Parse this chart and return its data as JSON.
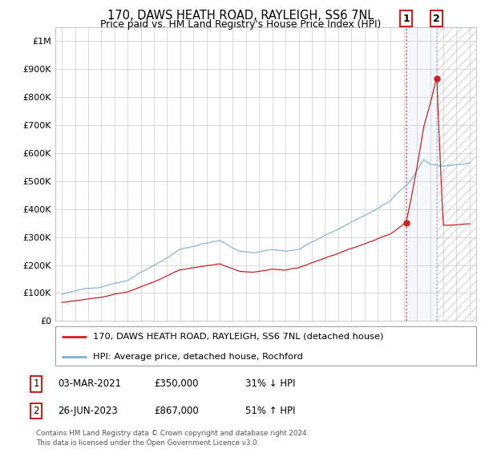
{
  "title": "170, DAWS HEATH ROAD, RAYLEIGH, SS6 7NL",
  "subtitle": "Price paid vs. HM Land Registry's House Price Index (HPI)",
  "hpi_color": "#7bafd4",
  "price_color": "#cc2222",
  "transaction1_date": 2021.17,
  "transaction1_price": 350000,
  "transaction2_date": 2023.49,
  "transaction2_price": 867000,
  "legend_line1": "170, DAWS HEATH ROAD, RAYLEIGH, SS6 7NL (detached house)",
  "legend_line2": "HPI: Average price, detached house, Rochford",
  "table_row1": [
    "1",
    "03-MAR-2021",
    "£350,000",
    "31% ↓ HPI"
  ],
  "table_row2": [
    "2",
    "26-JUN-2023",
    "£867,000",
    "51% ↑ HPI"
  ],
  "footnote": "Contains HM Land Registry data © Crown copyright and database right 2024.\nThis data is licensed under the Open Government Licence v3.0.",
  "background_color": "#ffffff",
  "grid_color": "#cccccc",
  "yticks": [
    0,
    100000,
    200000,
    300000,
    400000,
    500000,
    600000,
    700000,
    800000,
    900000,
    1000000
  ],
  "ytick_labels": [
    "£0",
    "£100K",
    "£200K",
    "£300K",
    "£400K",
    "£500K",
    "£600K",
    "£700K",
    "£800K",
    "£900K",
    "£1M"
  ],
  "ylim": [
    0,
    1050000
  ],
  "xlim_min": 1994.5,
  "xlim_max": 2026.5
}
